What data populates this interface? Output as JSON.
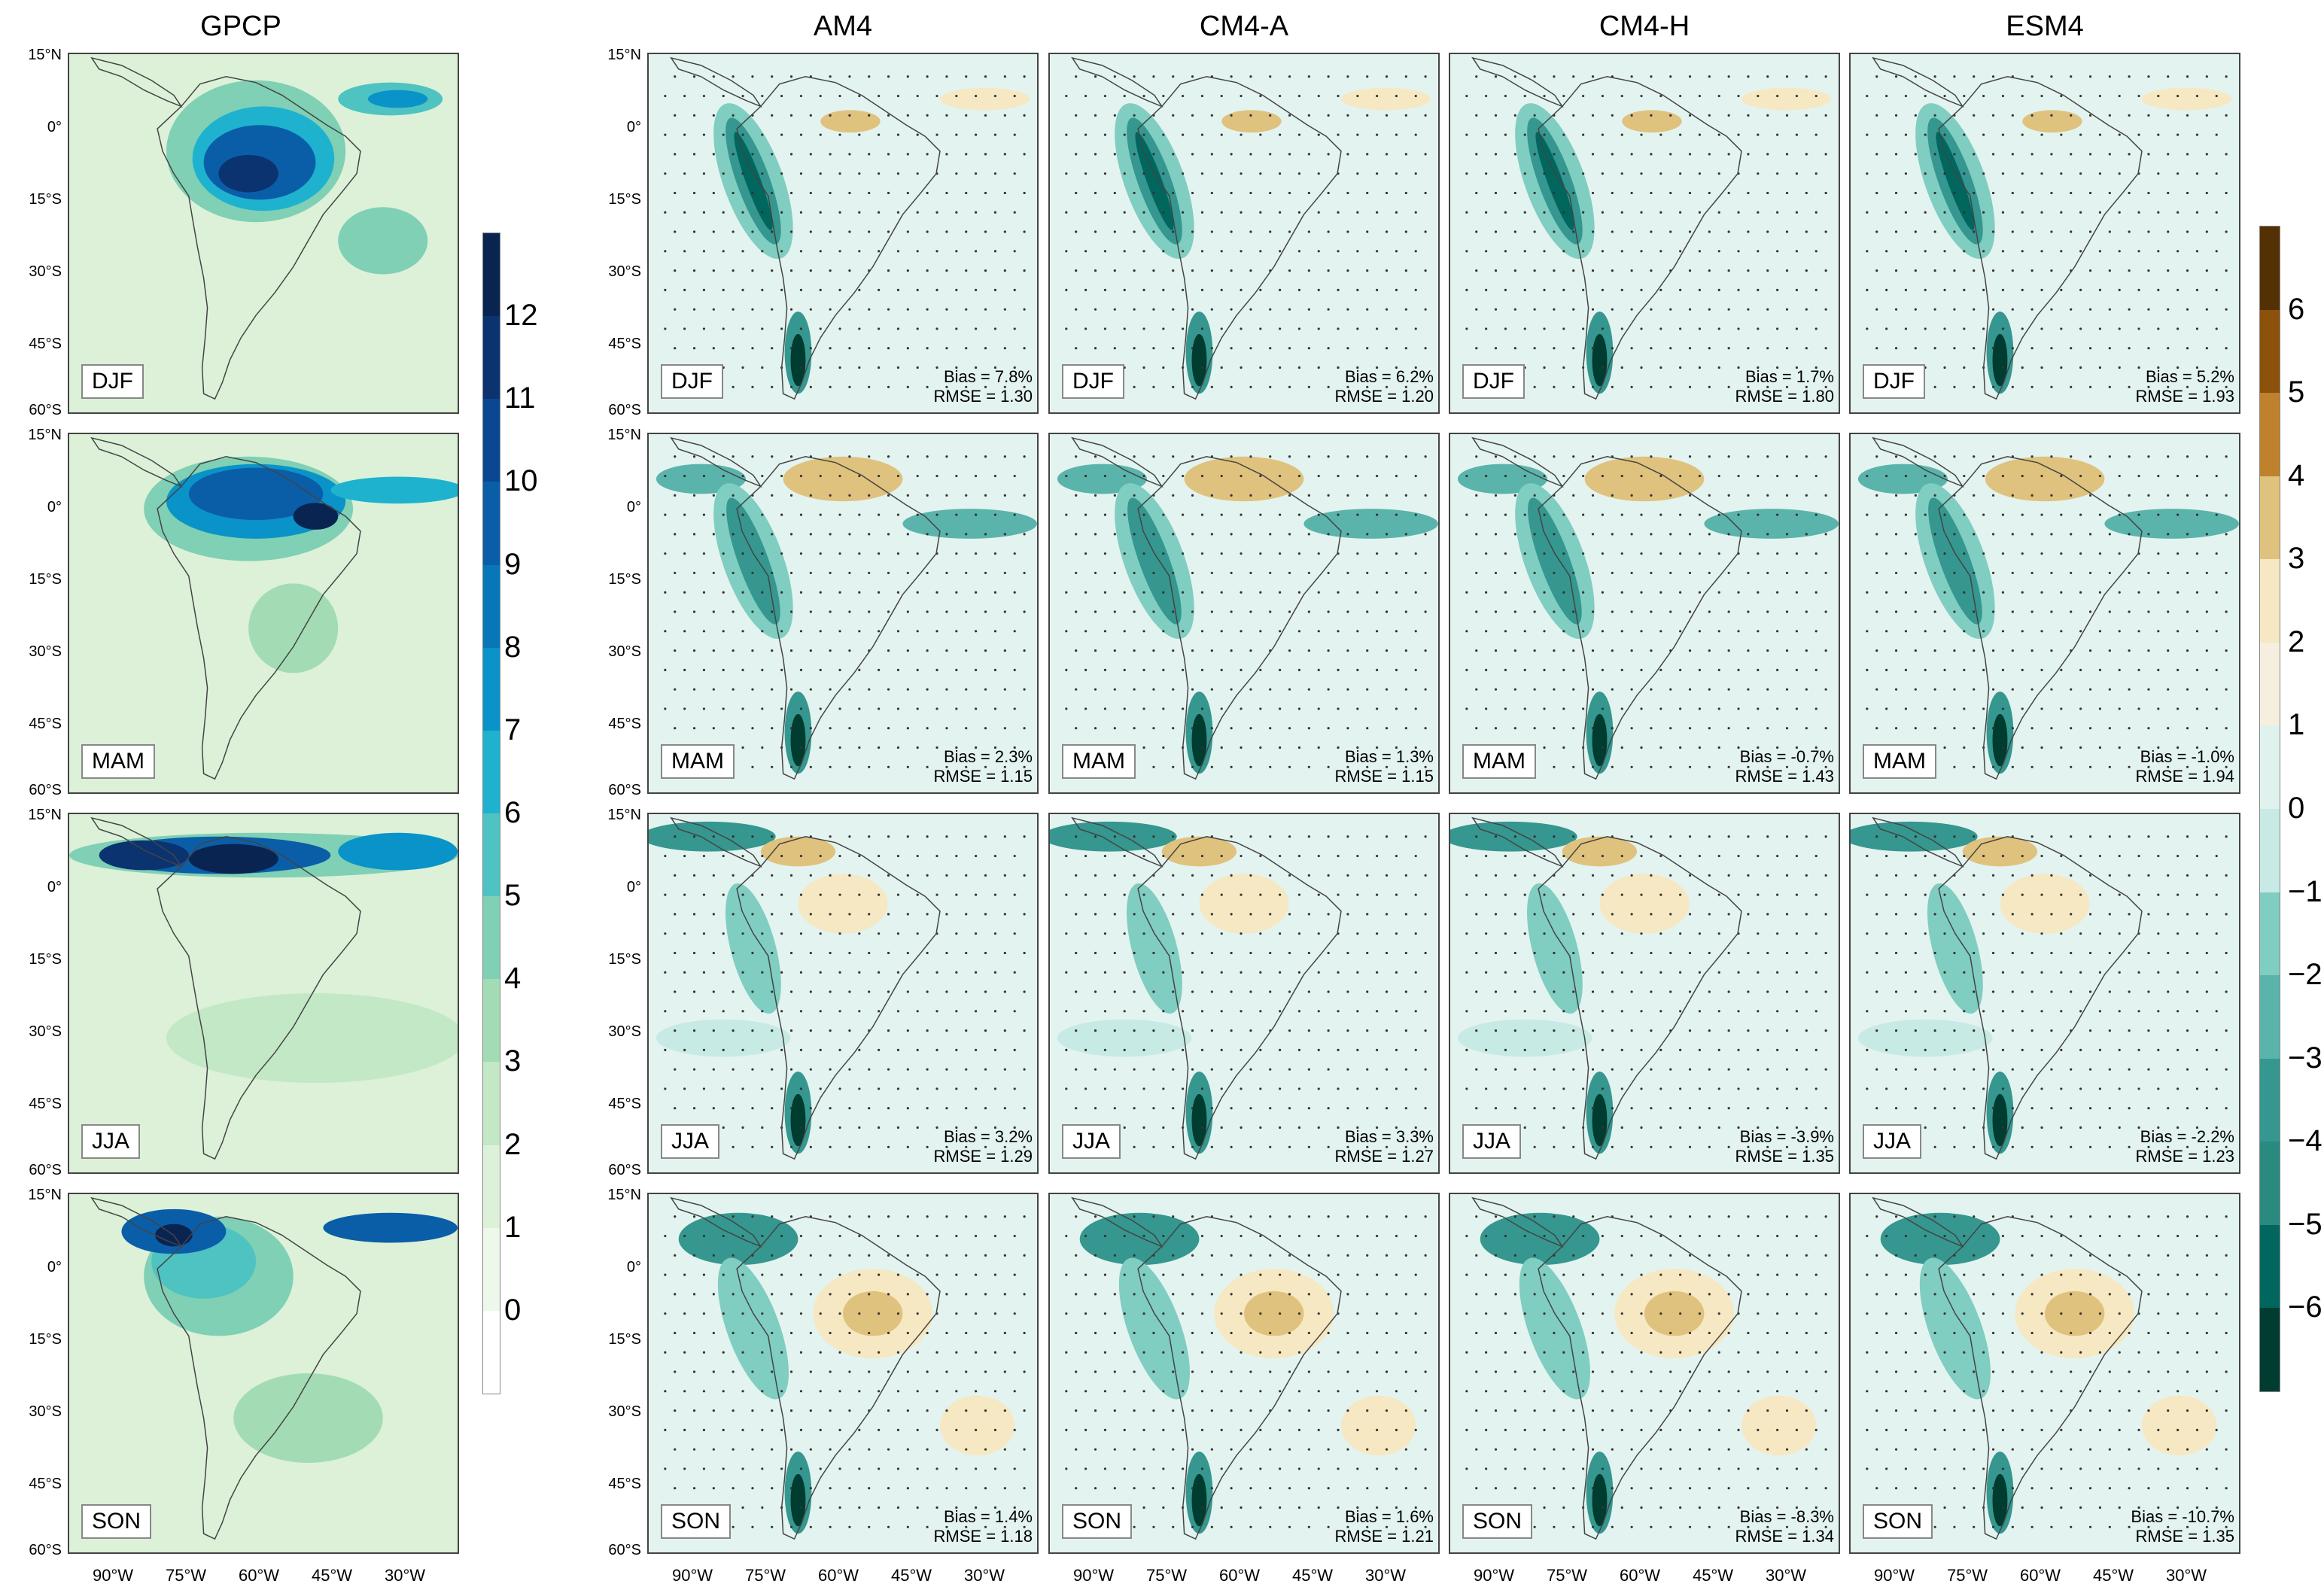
{
  "figure": {
    "columns": [
      {
        "key": "gpcp",
        "title": "GPCP"
      },
      {
        "key": "am4",
        "title": "AM4"
      },
      {
        "key": "cm4a",
        "title": "CM4-A"
      },
      {
        "key": "cm4h",
        "title": "CM4-H"
      },
      {
        "key": "esm4",
        "title": "ESM4"
      }
    ],
    "seasons": [
      "DJF",
      "MAM",
      "JJA",
      "SON"
    ],
    "lat_labels": [
      "15°N",
      "0°",
      "15°S",
      "30°S",
      "45°S",
      "60°S"
    ],
    "lon_labels": [
      "90°W",
      "75°W",
      "60°W",
      "45°W",
      "30°W"
    ],
    "stats": {
      "am4": [
        {
          "bias": "Bias = 7.8%",
          "rmse": "RMSE = 1.30"
        },
        {
          "bias": "Bias = 2.3%",
          "rmse": "RMSE = 1.15"
        },
        {
          "bias": "Bias = 3.2%",
          "rmse": "RMSE = 1.29"
        },
        {
          "bias": "Bias = 1.4%",
          "rmse": "RMSE = 1.18"
        }
      ],
      "cm4a": [
        {
          "bias": "Bias = 6.2%",
          "rmse": "RMSE = 1.20"
        },
        {
          "bias": "Bias = 1.3%",
          "rmse": "RMSE = 1.15"
        },
        {
          "bias": "Bias = 3.3%",
          "rmse": "RMSE = 1.27"
        },
        {
          "bias": "Bias = 1.6%",
          "rmse": "RMSE = 1.21"
        }
      ],
      "cm4h": [
        {
          "bias": "Bias = 1.7%",
          "rmse": "RMSE = 1.80"
        },
        {
          "bias": "Bias = -0.7%",
          "rmse": "RMSE = 1.43"
        },
        {
          "bias": "Bias = -3.9%",
          "rmse": "RMSE = 1.35"
        },
        {
          "bias": "Bias = -8.3%",
          "rmse": "RMSE = 1.34"
        }
      ],
      "esm4": [
        {
          "bias": "Bias = 5.2%",
          "rmse": "RMSE = 1.93"
        },
        {
          "bias": "Bias = -1.0%",
          "rmse": "RMSE = 1.94"
        },
        {
          "bias": "Bias = -2.2%",
          "rmse": "RMSE = 1.23"
        },
        {
          "bias": "Bias = -10.7%",
          "rmse": "RMSE = 1.35"
        }
      ]
    },
    "colorbar_gpcp": {
      "labels": [
        "12",
        "11",
        "10",
        "9",
        "8",
        "7",
        "6",
        "5",
        "4",
        "3",
        "2",
        "1",
        "0"
      ],
      "colors": [
        "#ffffff",
        "#eef8ea",
        "#dcf1d8",
        "#c3e8c6",
        "#a3dcb4",
        "#7fd0b4",
        "#4ec3c1",
        "#1fb2cf",
        "#0a93c8",
        "#0777b7",
        "#0a5ea8",
        "#0a4791",
        "#0b3370",
        "#0a2452"
      ]
    },
    "colorbar_diff": {
      "labels": [
        "6",
        "5",
        "4",
        "3",
        "2",
        "1",
        "0",
        "−1",
        "−2",
        "−3",
        "−4",
        "−5",
        "−6"
      ],
      "colors": [
        "#003c30",
        "#01665e",
        "#2a8a80",
        "#35978f",
        "#5ab4ac",
        "#80cdc1",
        "#c7eae5",
        "#dff2ee",
        "#f6efe0",
        "#f6e8c3",
        "#dfc27d",
        "#bf812d",
        "#8c510a",
        "#543005"
      ]
    }
  }
}
